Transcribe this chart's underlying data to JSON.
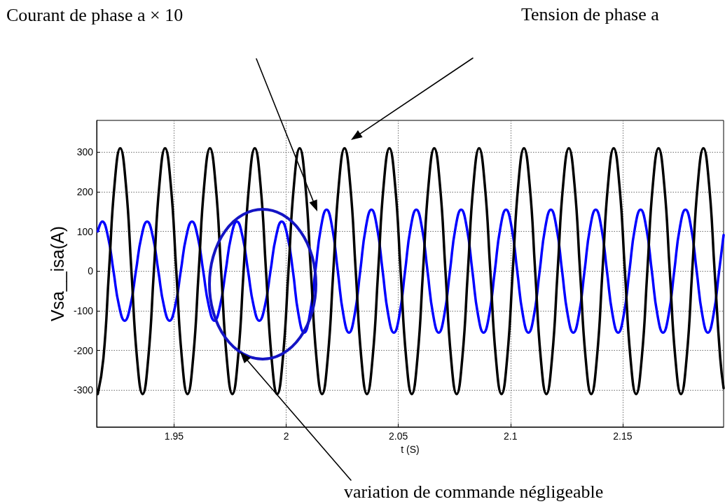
{
  "chart_data": {
    "type": "line",
    "xlabel": "t (S)",
    "ylabel": "Vsa__isa(A)",
    "xlim": [
      1.9155,
      2.195
    ],
    "xticks": [
      1.95,
      2,
      2.05,
      2.1,
      2.15
    ],
    "ylim": [
      -393,
      380
    ],
    "yticks": [
      -300,
      -200,
      -100,
      0,
      100,
      200,
      300
    ],
    "grid": true,
    "series": [
      {
        "color": "#0000ff",
        "x": [
          1.916,
          1.918,
          1.9205,
          1.923,
          1.9255,
          1.928,
          1.9305,
          1.933,
          1.9355,
          1.938,
          1.9405,
          1.943,
          1.9455,
          1.948,
          1.9505,
          1.953,
          1.9555,
          1.958,
          1.9605,
          1.963,
          1.9655,
          1.968,
          1.9705,
          1.973,
          1.9755,
          1.978,
          1.9805,
          1.983,
          1.9855,
          1.988,
          1.9905,
          1.993,
          1.9955,
          1.998,
          2.0005,
          2.003,
          2.0055,
          2.008,
          2.0105,
          2.013,
          2.0155,
          2.018,
          2.0205,
          2.023,
          2.0255,
          2.028,
          2.0305,
          2.033,
          2.0355,
          2.038,
          2.0405,
          2.043,
          2.0455,
          2.048,
          2.0505,
          2.053,
          2.0555,
          2.058,
          2.0605,
          2.063,
          2.0655,
          2.068,
          2.0705,
          2.073,
          2.0755,
          2.078,
          2.0805,
          2.083,
          2.0855,
          2.088,
          2.0905,
          2.093,
          2.0955,
          2.098,
          2.1005,
          2.103,
          2.1055,
          2.108,
          2.1105,
          2.113,
          2.1155,
          2.118,
          2.1205,
          2.123,
          2.1255,
          2.128,
          2.1305,
          2.133,
          2.1355,
          2.138,
          2.1405,
          2.143,
          2.1455,
          2.148,
          2.1505,
          2.153,
          2.1555,
          2.158,
          2.1605,
          2.163,
          2.1655,
          2.168,
          2.1705,
          2.173,
          2.1755,
          2.178,
          2.1805,
          2.183,
          2.1855,
          2.188,
          2.1905,
          2.193,
          2.195
        ],
        "values": [
          100,
          125,
          88,
          0,
          -88,
          -125,
          -88,
          0,
          88,
          125,
          88,
          0,
          -88,
          -125,
          -88,
          0,
          88,
          125,
          88,
          0,
          -88,
          -125,
          -88,
          0,
          88,
          125,
          88,
          0,
          -88,
          -125,
          -88,
          0,
          88,
          125,
          90,
          0,
          -110,
          -155,
          -110,
          0,
          110,
          155,
          110,
          0,
          -110,
          -155,
          -110,
          0,
          110,
          155,
          110,
          0,
          -110,
          -155,
          -110,
          0,
          110,
          155,
          110,
          0,
          -110,
          -155,
          -110,
          0,
          110,
          155,
          110,
          0,
          -110,
          -155,
          -110,
          0,
          110,
          155,
          110,
          0,
          -110,
          -155,
          -110,
          0,
          110,
          155,
          110,
          0,
          -110,
          -155,
          -110,
          0,
          110,
          155,
          110,
          0,
          -110,
          -155,
          -110,
          0,
          110,
          155,
          110,
          0,
          -110,
          -155,
          -110,
          0,
          110,
          155,
          110,
          0,
          -110,
          -155,
          -110,
          0,
          91
        ]
      },
      {
        "color": "#000000",
        "x": [
          1.916,
          1.9185,
          1.921,
          1.9235,
          1.926,
          1.9285,
          1.931,
          1.9335,
          1.936,
          1.9385,
          1.941,
          1.9435,
          1.946,
          1.9485,
          1.951,
          1.9535,
          1.956,
          1.9585,
          1.961,
          1.9635,
          1.966,
          1.9685,
          1.971,
          1.9735,
          1.976,
          1.9785,
          1.981,
          1.9835,
          1.986,
          1.9885,
          1.991,
          1.9935,
          1.996,
          1.9985,
          2.001,
          2.0035,
          2.006,
          2.0085,
          2.011,
          2.0135,
          2.016,
          2.0185,
          2.021,
          2.0235,
          2.026,
          2.0285,
          2.031,
          2.0335,
          2.036,
          2.0385,
          2.041,
          2.0435,
          2.046,
          2.0485,
          2.051,
          2.0535,
          2.056,
          2.0585,
          2.061,
          2.0635,
          2.066,
          2.0685,
          2.071,
          2.0735,
          2.076,
          2.0785,
          2.081,
          2.0835,
          2.086,
          2.0885,
          2.091,
          2.0935,
          2.096,
          2.0985,
          2.101,
          2.1035,
          2.106,
          2.1085,
          2.111,
          2.1135,
          2.116,
          2.1185,
          2.121,
          2.1235,
          2.126,
          2.1285,
          2.131,
          2.1335,
          2.136,
          2.1385,
          2.141,
          2.1435,
          2.146,
          2.1485,
          2.151,
          2.1535,
          2.156,
          2.1585,
          2.161,
          2.1635,
          2.166,
          2.1685,
          2.171,
          2.1735,
          2.176,
          2.1785,
          2.181,
          2.1835,
          2.186,
          2.1885,
          2.191,
          2.1935,
          2.195
        ],
        "values": [
          -310,
          -220,
          0,
          220,
          310,
          220,
          0,
          -220,
          -310,
          -220,
          0,
          220,
          310,
          220,
          0,
          -220,
          -310,
          -220,
          0,
          220,
          310,
          220,
          0,
          -220,
          -310,
          -220,
          0,
          220,
          310,
          220,
          0,
          -220,
          -310,
          -220,
          0,
          220,
          310,
          220,
          0,
          -220,
          -310,
          -220,
          0,
          220,
          310,
          220,
          0,
          -220,
          -310,
          -220,
          0,
          220,
          310,
          220,
          0,
          -220,
          -310,
          -220,
          0,
          220,
          310,
          220,
          0,
          -220,
          -310,
          -220,
          0,
          220,
          310,
          220,
          0,
          -220,
          -310,
          -220,
          0,
          220,
          310,
          220,
          0,
          -220,
          -310,
          -220,
          0,
          220,
          310,
          220,
          0,
          -220,
          -310,
          -220,
          0,
          220,
          310,
          220,
          0,
          -220,
          -310,
          -220,
          0,
          220,
          310,
          220,
          0,
          -220,
          -310,
          -220,
          0,
          220,
          310,
          220,
          0,
          -220,
          -295
        ]
      }
    ],
    "annotations": [
      "Courant de phase a × 10",
      "Tension de phase a",
      "variation de commande négligeable"
    ]
  }
}
